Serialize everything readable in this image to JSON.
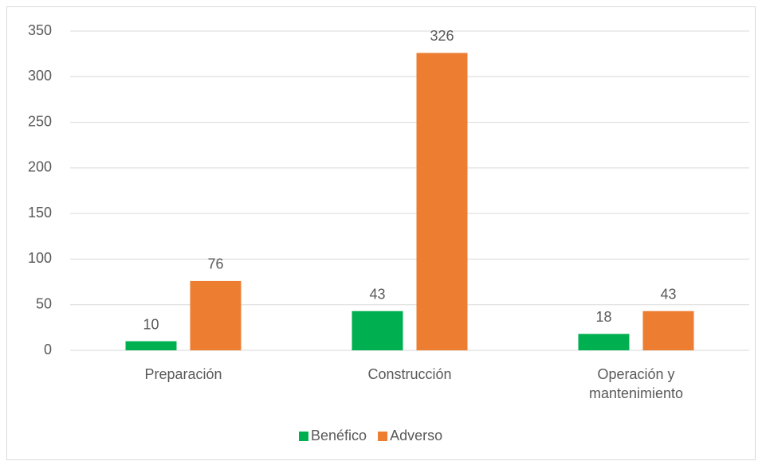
{
  "chart_data": {
    "type": "bar",
    "categories": [
      "Preparación",
      "Construcción",
      "Operación y mantenimiento"
    ],
    "series": [
      {
        "name": "Benéfico",
        "color": "#00b050",
        "values": [
          10,
          43,
          18
        ]
      },
      {
        "name": "Adverso",
        "color": "#ed7d31",
        "values": [
          76,
          326,
          43
        ]
      }
    ],
    "ylim": [
      0,
      350
    ],
    "yticks": [
      0,
      50,
      100,
      150,
      200,
      250,
      300,
      350
    ],
    "grid": true,
    "legend": "bottom"
  }
}
